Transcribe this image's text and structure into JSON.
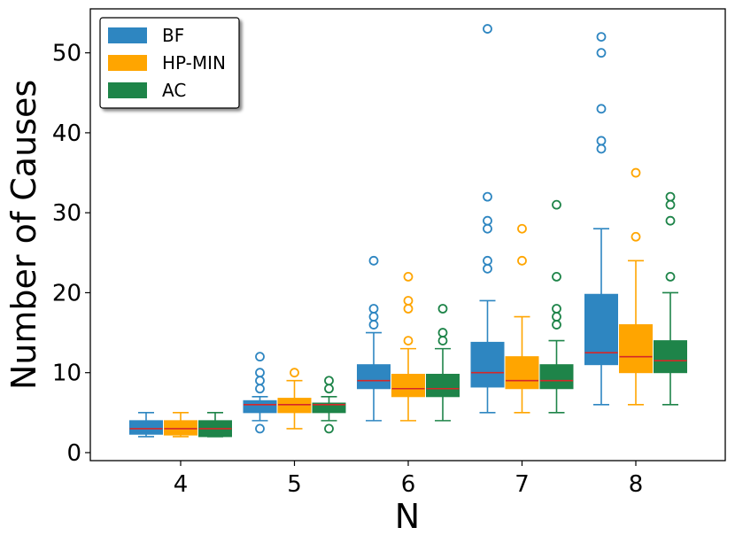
{
  "chart_data": {
    "type": "boxplot",
    "xlabel": "N",
    "ylabel": "Number of Causes",
    "categories": [
      "4",
      "5",
      "6",
      "7",
      "8"
    ],
    "ylim": [
      -1,
      55.5
    ],
    "yticks": [
      0,
      10,
      20,
      30,
      40,
      50
    ],
    "legend_position": "top-left",
    "median_color": "#d62728",
    "series": [
      {
        "name": "BF",
        "color": "#2e86c1",
        "boxes": [
          {
            "whisker_low": 2,
            "q1": 2.3,
            "median": 3,
            "q3": 4,
            "whisker_high": 5,
            "outliers": []
          },
          {
            "whisker_low": 4,
            "q1": 5,
            "median": 6,
            "q3": 6.5,
            "whisker_high": 7,
            "outliers": [
              3,
              8,
              9,
              10,
              12
            ]
          },
          {
            "whisker_low": 4,
            "q1": 8,
            "median": 9,
            "q3": 11,
            "whisker_high": 15,
            "outliers": [
              16,
              17,
              18,
              24
            ]
          },
          {
            "whisker_low": 5,
            "q1": 8.2,
            "median": 10,
            "q3": 13.8,
            "whisker_high": 19,
            "outliers": [
              23,
              24,
              28,
              29,
              32,
              53
            ]
          },
          {
            "whisker_low": 6,
            "q1": 11,
            "median": 12.5,
            "q3": 19.8,
            "whisker_high": 28,
            "outliers": [
              38,
              39,
              43,
              50,
              52
            ]
          }
        ]
      },
      {
        "name": "HP-MIN",
        "color": "#ffa500",
        "boxes": [
          {
            "whisker_low": 2,
            "q1": 2.2,
            "median": 3,
            "q3": 4,
            "whisker_high": 5,
            "outliers": []
          },
          {
            "whisker_low": 3,
            "q1": 5,
            "median": 6,
            "q3": 6.8,
            "whisker_high": 9,
            "outliers": [
              10
            ]
          },
          {
            "whisker_low": 4,
            "q1": 7,
            "median": 8,
            "q3": 9.8,
            "whisker_high": 13,
            "outliers": [
              14,
              18,
              19,
              22
            ]
          },
          {
            "whisker_low": 5,
            "q1": 8,
            "median": 9,
            "q3": 12,
            "whisker_high": 17,
            "outliers": [
              24,
              28
            ]
          },
          {
            "whisker_low": 6,
            "q1": 10,
            "median": 12,
            "q3": 16,
            "whisker_high": 24,
            "outliers": [
              27,
              35
            ]
          }
        ]
      },
      {
        "name": "AC",
        "color": "#1e8449",
        "boxes": [
          {
            "whisker_low": 2,
            "q1": 2,
            "median": 3,
            "q3": 4,
            "whisker_high": 5,
            "outliers": []
          },
          {
            "whisker_low": 4,
            "q1": 5,
            "median": 6,
            "q3": 6.2,
            "whisker_high": 7,
            "outliers": [
              3,
              8,
              9
            ]
          },
          {
            "whisker_low": 4,
            "q1": 7,
            "median": 8,
            "q3": 9.8,
            "whisker_high": 13,
            "outliers": [
              14,
              15,
              18
            ]
          },
          {
            "whisker_low": 5,
            "q1": 8,
            "median": 9,
            "q3": 11,
            "whisker_high": 14,
            "outliers": [
              16,
              17,
              18,
              22,
              31
            ]
          },
          {
            "whisker_low": 6,
            "q1": 10,
            "median": 11.5,
            "q3": 14,
            "whisker_high": 20,
            "outliers": [
              22,
              29,
              31,
              32
            ]
          }
        ]
      }
    ]
  }
}
